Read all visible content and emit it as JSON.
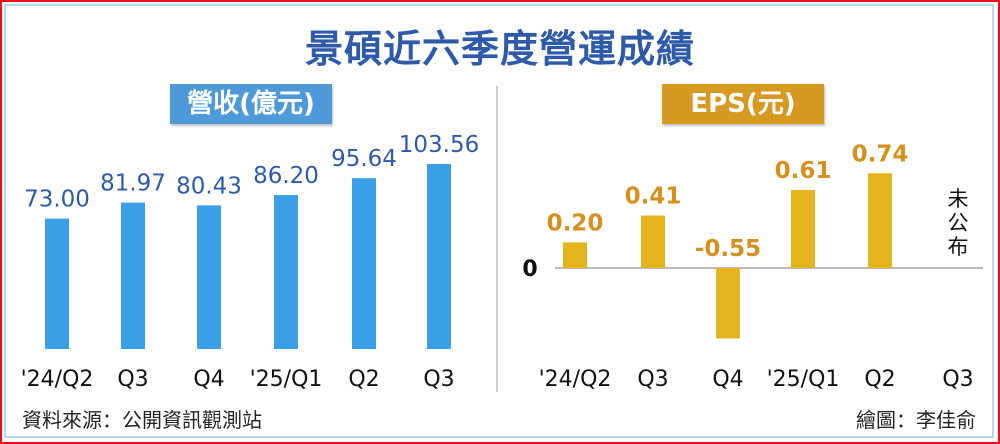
{
  "title": "景碩近六季度營運成績",
  "footer": {
    "source": "資料來源：公開資訊觀測站",
    "credit": "繪圖：李佳俞"
  },
  "colors": {
    "revenue": "#3a9fe6",
    "eps": "#e3b41e",
    "eps_label": "#d6901e",
    "title": "#2e5ba9"
  },
  "chart_data": [
    {
      "type": "bar",
      "title": "營收(億元)",
      "categories": [
        "'24/Q2",
        "Q3",
        "Q4",
        "'25/Q1",
        "Q2",
        "Q3"
      ],
      "values": [
        73.0,
        81.97,
        80.43,
        86.2,
        95.64,
        103.56
      ],
      "labels": [
        "73.00",
        "81.97",
        "80.43",
        "86.20",
        "95.64",
        "103.56"
      ],
      "ylim": [
        0,
        110
      ]
    },
    {
      "type": "bar",
      "title": "EPS(元)",
      "categories": [
        "'24/Q2",
        "Q3",
        "Q4",
        "'25/Q1",
        "Q2",
        "Q3"
      ],
      "values": [
        0.2,
        0.41,
        -0.55,
        0.61,
        0.74,
        null
      ],
      "labels": [
        "0.20",
        "0.41",
        "-0.55",
        "0.61",
        "0.74",
        "未公布"
      ],
      "zero_label": "0"
    }
  ]
}
